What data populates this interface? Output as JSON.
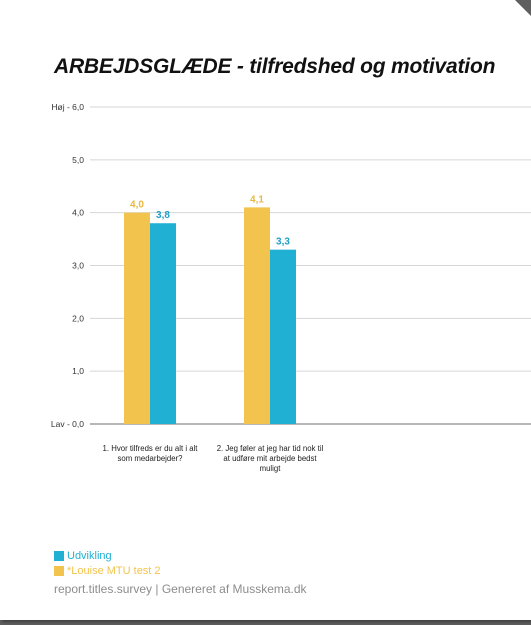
{
  "chart_data": {
    "type": "bar",
    "title": "ARBEJDSGLÆDE - tilfredshed og motivation",
    "categories": [
      [
        "1. Hvor tilfreds er du alt i alt",
        "som medarbejder?"
      ],
      [
        "2. Jeg føler at jeg har tid nok til",
        "at udføre mit arbejde bedst",
        "muligt"
      ]
    ],
    "series": [
      {
        "name": "*Louise MTU test 2",
        "values": [
          4.0,
          4.1
        ],
        "labels": [
          "4,0",
          "4,1"
        ],
        "color": "#f2c44e",
        "label_color": "#e9b840"
      },
      {
        "name": "Udvikling",
        "values": [
          3.8,
          3.3
        ],
        "labels": [
          "3,8",
          "3,3"
        ],
        "color": "#1fb0d4",
        "label_color": "#1f9fc6"
      }
    ],
    "y_ticks": [
      {
        "value": 6,
        "label": "Høj - 6,0"
      },
      {
        "value": 5,
        "label": "5,0"
      },
      {
        "value": 4,
        "label": "4,0"
      },
      {
        "value": 3,
        "label": "3,0"
      },
      {
        "value": 2,
        "label": "2,0"
      },
      {
        "value": 1,
        "label": "1,0"
      },
      {
        "value": 0,
        "label": "Lav - 0,0"
      }
    ],
    "ylim": [
      0,
      6
    ],
    "grid": true,
    "legend_position": "bottom-left"
  },
  "legend": [
    {
      "label": "Udvikling",
      "color": "#1fb0d4"
    },
    {
      "label": "*Louise MTU test 2",
      "color": "#f2c44e"
    }
  ],
  "footer": {
    "text": "report.titles.survey | Genereret af Musskema.dk"
  }
}
